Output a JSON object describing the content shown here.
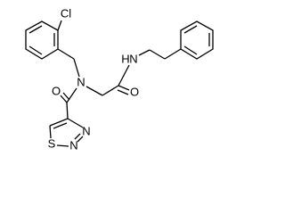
{
  "atoms": [
    {
      "label": "Cl"
    },
    {
      "label": "N"
    },
    {
      "label": "O"
    },
    {
      "label": "H"
    },
    {
      "label": "N"
    },
    {
      "label": "O"
    },
    {
      "label": "S"
    },
    {
      "label": "N"
    },
    {
      "label": "N"
    }
  ]
}
